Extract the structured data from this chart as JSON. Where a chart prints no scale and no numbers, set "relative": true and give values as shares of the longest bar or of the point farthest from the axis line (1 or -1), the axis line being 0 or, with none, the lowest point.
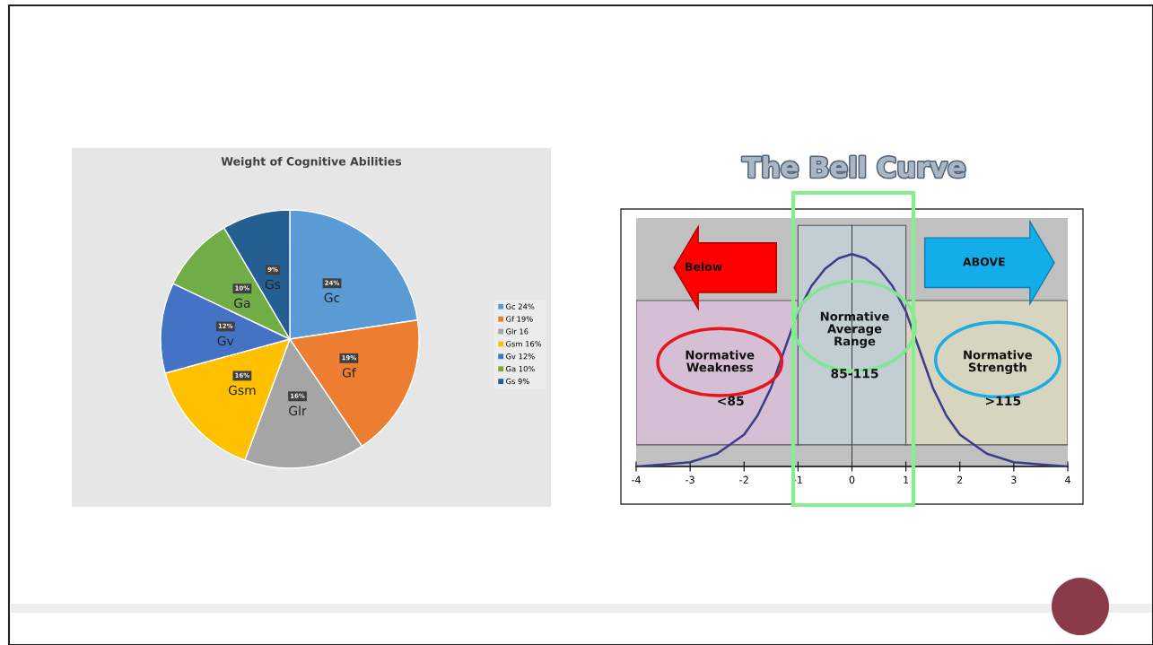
{
  "chart_data": [
    {
      "type": "pie",
      "title": "Weight of Cognitive Abilities",
      "categories": [
        "Gc",
        "Gf",
        "Glr",
        "Gsm",
        "Gv",
        "Ga",
        "Gs"
      ],
      "values": [
        24,
        19,
        16,
        16,
        12,
        10,
        9
      ],
      "colors": [
        "#5b9bd5",
        "#ed7d31",
        "#a5a5a5",
        "#ffc000",
        "#4472c4",
        "#70ad47",
        "#255e91"
      ],
      "value_labels": [
        "24%",
        "19%",
        "16%",
        "16%",
        "12%",
        "10%",
        "9%"
      ],
      "annotations": [
        "Gc 24%",
        "Gf 19%",
        "Glr 16",
        "Gsm 16%",
        "Gv 12%",
        "Ga 10%",
        "Gs 9%"
      ]
    },
    {
      "type": "line",
      "title": "The Bell Curve",
      "relative": true,
      "color": "#3c3c8c",
      "x": [
        -4,
        -3.5,
        -3,
        -2.5,
        -2,
        -1.75,
        -1.5,
        -1.25,
        -1,
        -0.75,
        -0.5,
        -0.25,
        0,
        0.25,
        0.5,
        0.75,
        1,
        1.25,
        1.5,
        1.75,
        2,
        2.5,
        3,
        3.5,
        4
      ],
      "values": [
        0,
        0.01,
        0.02,
        0.06,
        0.15,
        0.24,
        0.37,
        0.55,
        0.73,
        0.85,
        0.93,
        0.98,
        1,
        0.98,
        0.93,
        0.85,
        0.73,
        0.55,
        0.37,
        0.24,
        0.15,
        0.06,
        0.02,
        0.01,
        0
      ],
      "xlim": [
        -4,
        4
      ],
      "xticks": [
        -4,
        -3,
        -2,
        -1,
        0,
        1,
        2,
        3,
        4
      ],
      "tick_labels": "x",
      "bands": [
        {
          "axis": "x",
          "from": -4,
          "to": -1,
          "label": "<85",
          "color": "#d5bfd5"
        },
        {
          "axis": "x",
          "from": -1,
          "to": 1,
          "label": "85-115",
          "color": "#c2ced4"
        },
        {
          "axis": "x",
          "from": 1,
          "to": 4,
          "label": ">115",
          "color": "#d7d5bf"
        }
      ],
      "ref_lines": [
        {
          "axis": "x",
          "value": 0,
          "color": "#333333"
        }
      ],
      "annotations": [
        "Below",
        "ABOVE",
        "Normative Weakness",
        "Normative Average Range",
        "Normative Strength"
      ]
    }
  ]
}
